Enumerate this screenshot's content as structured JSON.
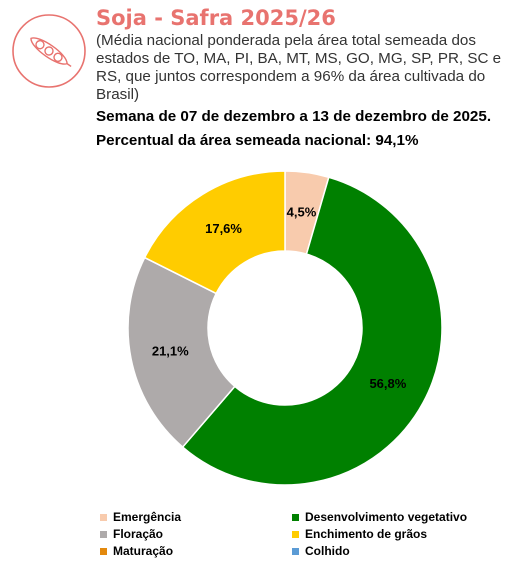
{
  "header": {
    "title": "Soja - Safra 2025/26",
    "subtitle": "(Média nacional ponderada pela área total semeada dos estados de TO, MA, PI, BA, MT, MS, GO, MG, SP, PR, SC e RS, que juntos correspondem a 96% da área cultivada do Brasil)",
    "week": "Semana de 07 de dezembro a 13 de dezembro de 2025.",
    "national": "Percentual da área semeada nacional: 94,1%",
    "logo_icon": "soybean-pod-icon",
    "accent_color": "#e8736f"
  },
  "chart_data": {
    "type": "pie",
    "variant": "donut",
    "title": "",
    "categories": [
      "Emergência",
      "Desenvolvimento vegetativo",
      "Floração",
      "Enchimento de grãos",
      "Maturação",
      "Colhido"
    ],
    "values": [
      4.5,
      56.8,
      21.1,
      17.6,
      0.0,
      0.0
    ],
    "data_labels": [
      "4,5%",
      "56,8%",
      "21,1%",
      "17,6%",
      "",
      ""
    ],
    "colors": [
      "#f8cbad",
      "#008000",
      "#aeaaaa",
      "#ffcc00",
      "#e3890d",
      "#5b9bd5"
    ],
    "legend_position": "bottom",
    "start_angle_deg": 0,
    "direction": "clockwise"
  }
}
